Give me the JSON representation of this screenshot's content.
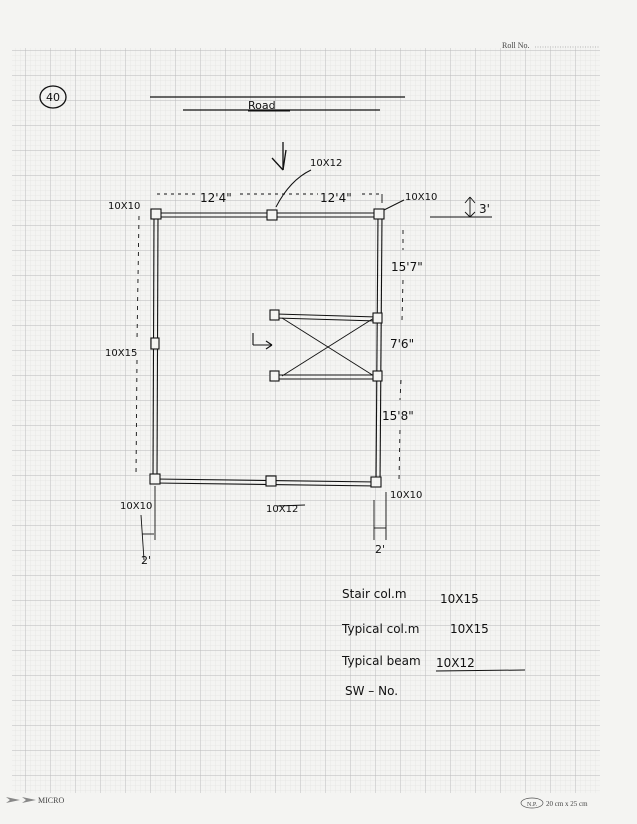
{
  "header": {
    "roll_label": "Roll No."
  },
  "sheet": {
    "number": "40",
    "road_label": "Road"
  },
  "plan": {
    "dimensions": {
      "top_left_span": "12'4\"",
      "top_right_span": "12'4\"",
      "right_upper": "15'7\"",
      "right_middle": "7'6\"",
      "right_lower": "15'8\"",
      "offset_top": "3'",
      "offset_left": "2'",
      "offset_right": "2'"
    },
    "column_labels": {
      "top_left": "10X10",
      "top_middle": "10X12",
      "top_right": "10X10",
      "left_middle": "10X15",
      "bottom_left": "10X10",
      "bottom_middle": "10X12",
      "bottom_right": "10X10"
    }
  },
  "notes": {
    "stair_col_label": "Stair col.m",
    "stair_col_value": "10X15",
    "typical_col_label": "Typical col.m",
    "typical_col_value": "10X15",
    "typical_beam_label": "Typical beam",
    "typical_beam_value": "10X12",
    "sw": "SW – No."
  },
  "footer": {
    "brand": "MICRO",
    "badge": "N.P.",
    "size": "20 cm x 25 cm"
  },
  "colors": {
    "paper": "#f4f4f2",
    "grid_minor": "#dcdcdc",
    "grid_major": "#b9b9b9",
    "ink": "#111111"
  }
}
